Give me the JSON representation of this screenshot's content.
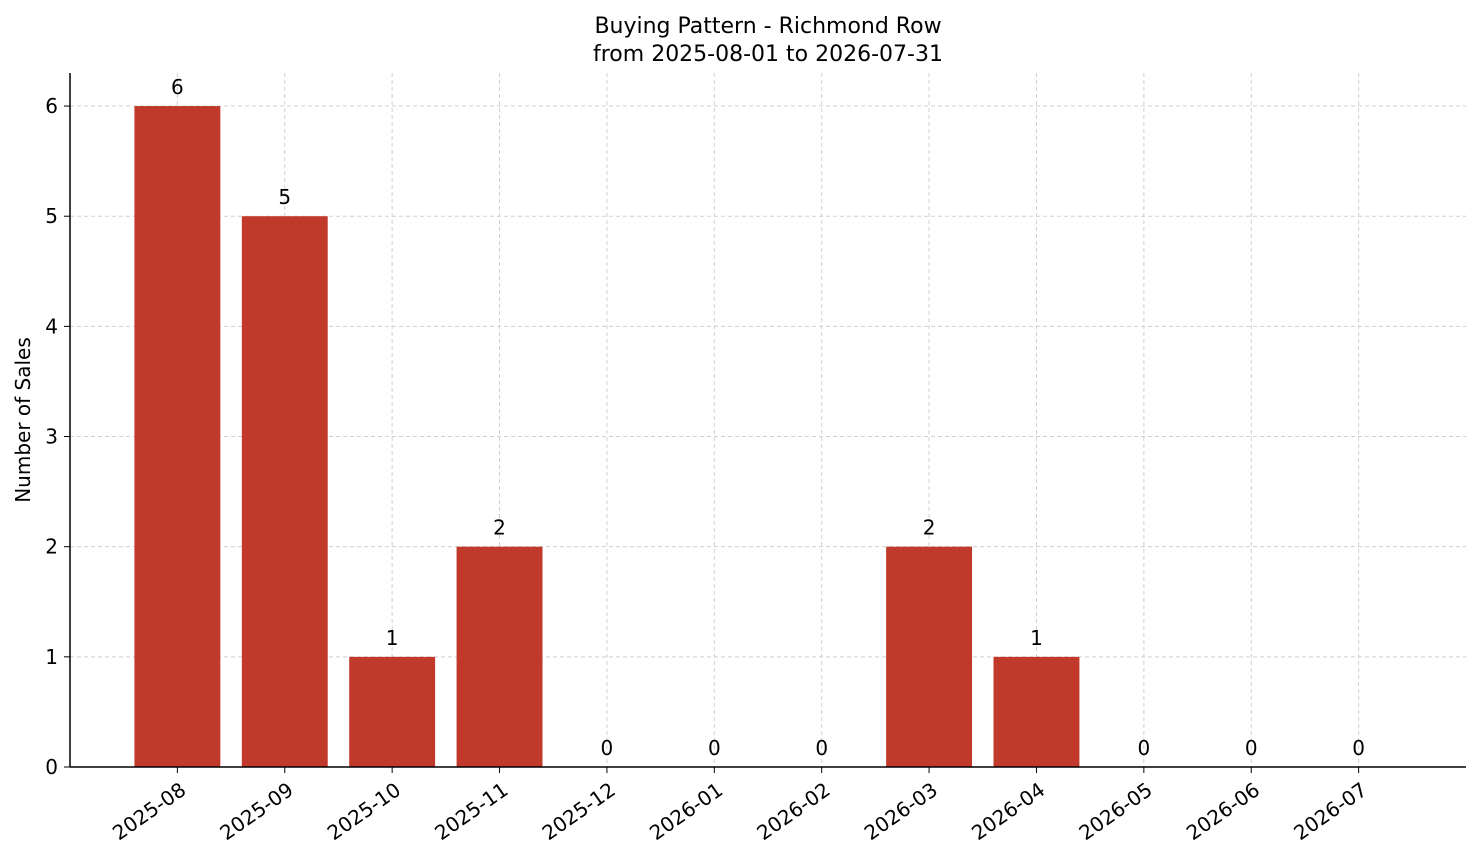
{
  "chart_data": {
    "type": "bar",
    "title": "Buying Pattern - Richmond Row",
    "subtitle": "from 2025-08-01 to 2026-07-31",
    "y_label": "Number of Sales",
    "categories": [
      "2025-08",
      "2025-09",
      "2025-10",
      "2025-11",
      "2025-12",
      "2026-01",
      "2026-02",
      "2026-03",
      "2026-04",
      "2026-05",
      "2026-06",
      "2026-07"
    ],
    "values": [
      6,
      5,
      1,
      2,
      0,
      0,
      0,
      2,
      1,
      0,
      0,
      0
    ],
    "color": "#c0392b",
    "ylim": [
      0,
      6.3
    ],
    "yticks": [
      0,
      1,
      2,
      3,
      4,
      5,
      6
    ],
    "grid": true
  }
}
